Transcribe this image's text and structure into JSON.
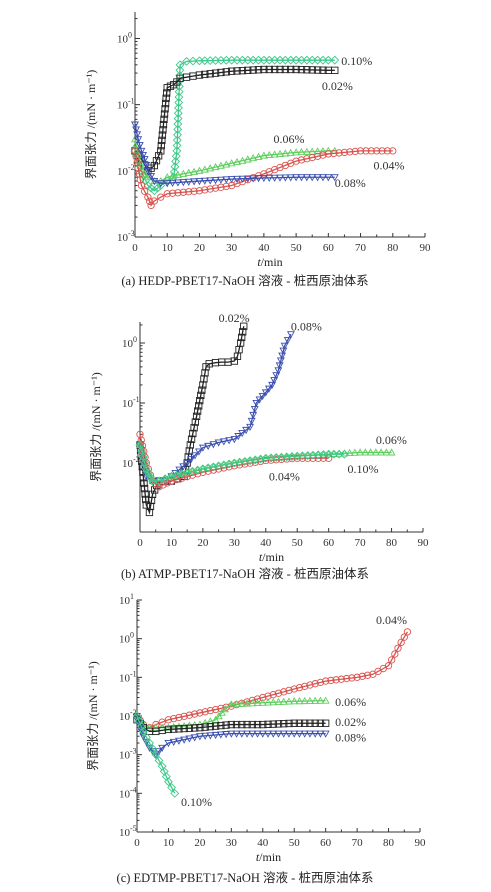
{
  "chart_data": [
    {
      "type": "line",
      "caption": "(a) HEDP-PBET17-NaOH 溶液 - 桩西原油体系",
      "xlabel_var": "t",
      "xlabel_unit": "/min",
      "ylabel": "界面张力 /(mN · m⁻¹)",
      "x_ticks": [
        "0",
        "10",
        "20",
        "30",
        "40",
        "50",
        "60",
        "70",
        "80",
        "90"
      ],
      "y_ticks": [
        {
          "base": "10",
          "exp": "0"
        },
        {
          "base": "10",
          "exp": "-1"
        },
        {
          "base": "10",
          "exp": "-2"
        },
        {
          "base": "10",
          "exp": "-3"
        }
      ],
      "xlim": [
        0,
        90
      ],
      "ylim_log10": [
        -3,
        0.4
      ],
      "series": [
        {
          "name": "0.10%",
          "color": "#3ec98a",
          "marker": "diamond",
          "x": [
            0,
            2,
            4,
            6,
            8,
            10,
            12,
            13,
            14,
            16,
            20,
            30,
            40,
            50,
            60,
            62
          ],
          "y": [
            0.02,
            0.01,
            0.006,
            0.005,
            0.006,
            0.007,
            0.008,
            0.02,
            0.4,
            0.45,
            0.46,
            0.47,
            0.47,
            0.47,
            0.47,
            0.47
          ]
        },
        {
          "name": "0.02%",
          "color": "#222222",
          "marker": "square",
          "x": [
            0,
            2,
            4,
            6,
            8,
            9,
            10,
            11,
            12,
            13,
            14,
            16,
            18,
            20,
            30,
            40,
            50,
            60,
            62
          ],
          "y": [
            0.02,
            0.015,
            0.01,
            0.012,
            0.02,
            0.06,
            0.18,
            0.19,
            0.2,
            0.22,
            0.25,
            0.26,
            0.27,
            0.28,
            0.32,
            0.34,
            0.34,
            0.33,
            0.33
          ]
        },
        {
          "name": "0.06%",
          "color": "#5ecf5e",
          "marker": "triangle-up",
          "x": [
            0,
            2,
            4,
            6,
            8,
            10,
            15,
            20,
            30,
            40,
            50,
            60,
            62
          ],
          "y": [
            0.03,
            0.01,
            0.008,
            0.007,
            0.007,
            0.008,
            0.009,
            0.01,
            0.013,
            0.017,
            0.019,
            0.02,
            0.02
          ]
        },
        {
          "name": "0.04%",
          "color": "#d9534f",
          "marker": "circle",
          "x": [
            0,
            2,
            4,
            5,
            6,
            8,
            10,
            20,
            30,
            40,
            50,
            60,
            70,
            80
          ],
          "y": [
            0.02,
            0.006,
            0.004,
            0.003,
            0.0035,
            0.004,
            0.0045,
            0.005,
            0.006,
            0.009,
            0.014,
            0.018,
            0.02,
            0.02
          ]
        },
        {
          "name": "0.08%",
          "color": "#3b4fb0",
          "marker": "triangle-down",
          "x": [
            0,
            1,
            2,
            3,
            4,
            6,
            8,
            10,
            20,
            30,
            40,
            50,
            60,
            62
          ],
          "y": [
            0.05,
            0.03,
            0.02,
            0.015,
            0.01,
            0.007,
            0.0065,
            0.0065,
            0.007,
            0.0075,
            0.0078,
            0.008,
            0.008,
            0.008
          ]
        }
      ],
      "labels": [
        {
          "text": "0.10%",
          "x": 64,
          "y": 0.46
        },
        {
          "text": "0.02%",
          "x": 58,
          "y": 0.19
        },
        {
          "text": "0.06%",
          "x": 43,
          "y": 0.03
        },
        {
          "text": "0.04%",
          "x": 74,
          "y": 0.012
        },
        {
          "text": "0.08%",
          "x": 62,
          "y": 0.0065
        }
      ]
    },
    {
      "type": "line",
      "caption": "(b) ATMP-PBET17-NaOH 溶液 - 桩西原油体系",
      "xlabel_var": "t",
      "xlabel_unit": "/min",
      "ylabel": "界面张力 /(mN · m⁻¹)",
      "x_ticks": [
        "0",
        "10",
        "20",
        "30",
        "40",
        "50",
        "60",
        "70",
        "80",
        "90"
      ],
      "y_ticks": [
        {
          "base": "10",
          "exp": "0"
        },
        {
          "base": "10",
          "exp": "-1"
        },
        {
          "base": "10",
          "exp": "-2"
        }
      ],
      "xlim": [
        0,
        90
      ],
      "ylim_log10": [
        -3.15,
        0.35
      ],
      "series": [
        {
          "name": "0.02%",
          "color": "#222222",
          "marker": "square",
          "x": [
            0,
            2,
            3,
            4,
            6,
            10,
            14,
            15,
            16,
            18,
            20,
            21,
            22,
            24,
            26,
            28,
            30,
            31,
            32,
            33
          ],
          "y": [
            0.02,
            0.002,
            0.0015,
            0.003,
            0.005,
            0.005,
            0.006,
            0.01,
            0.02,
            0.06,
            0.2,
            0.4,
            0.45,
            0.47,
            0.48,
            0.48,
            0.5,
            0.6,
            1.0,
            1.9
          ]
        },
        {
          "name": "0.08%",
          "color": "#3b4fb0",
          "marker": "triangle-down",
          "x": [
            0,
            2,
            4,
            6,
            8,
            10,
            15,
            20,
            25,
            30,
            35,
            37,
            40,
            42,
            44,
            46,
            48
          ],
          "y": [
            0.02,
            0.006,
            0.005,
            0.005,
            0.005,
            0.006,
            0.01,
            0.018,
            0.022,
            0.025,
            0.04,
            0.1,
            0.15,
            0.2,
            0.35,
            0.9,
            1.4
          ]
        },
        {
          "name": "0.06%",
          "color": "#5ecf5e",
          "marker": "triangle-up",
          "x": [
            0,
            2,
            4,
            6,
            10,
            20,
            30,
            40,
            50,
            60,
            70,
            80
          ],
          "y": [
            0.02,
            0.008,
            0.005,
            0.005,
            0.006,
            0.008,
            0.01,
            0.012,
            0.013,
            0.014,
            0.015,
            0.015
          ]
        },
        {
          "name": "0.04%",
          "color": "#d9534f",
          "marker": "circle",
          "x": [
            0,
            2,
            4,
            6,
            10,
            20,
            30,
            40,
            50,
            60
          ],
          "y": [
            0.03,
            0.01,
            0.005,
            0.004,
            0.005,
            0.007,
            0.009,
            0.011,
            0.012,
            0.012
          ]
        },
        {
          "name": "0.10%",
          "color": "#3ec98a",
          "marker": "diamond",
          "x": [
            0,
            2,
            4,
            6,
            10,
            20,
            30,
            40,
            50,
            60,
            65
          ],
          "y": [
            0.02,
            0.008,
            0.005,
            0.005,
            0.006,
            0.008,
            0.01,
            0.012,
            0.013,
            0.014,
            0.014
          ]
        }
      ],
      "labels": [
        {
          "text": "0.02%",
          "x": 25,
          "y": 2.6
        },
        {
          "text": "0.08%",
          "x": 48,
          "y": 1.9
        },
        {
          "text": "0.06%",
          "x": 75,
          "y": 0.024
        },
        {
          "text": "0.10%",
          "x": 66,
          "y": 0.008
        },
        {
          "text": "0.04%",
          "x": 41,
          "y": 0.006
        }
      ]
    },
    {
      "type": "line",
      "caption": "(c) EDTMP-PBET17-NaOH 溶液 - 桩西原油体系",
      "xlabel_var": "t",
      "xlabel_unit": "/min",
      "ylabel": "界面张力 /(mN · m⁻¹)",
      "x_ticks": [
        "0",
        "10",
        "20",
        "30",
        "40",
        "50",
        "60",
        "70",
        "80",
        "90"
      ],
      "y_ticks": [
        {
          "base": "10",
          "exp": "1"
        },
        {
          "base": "10",
          "exp": "0"
        },
        {
          "base": "10",
          "exp": "-1"
        },
        {
          "base": "10",
          "exp": "-2"
        },
        {
          "base": "10",
          "exp": "-3"
        },
        {
          "base": "10",
          "exp": "-4"
        },
        {
          "base": "10",
          "exp": "-5"
        }
      ],
      "xlim": [
        0,
        90
      ],
      "ylim_log10": [
        -5,
        1
      ],
      "series": [
        {
          "name": "0.04%",
          "color": "#d9534f",
          "marker": "circle",
          "x": [
            0,
            2,
            4,
            6,
            10,
            20,
            30,
            40,
            50,
            60,
            70,
            75,
            80,
            82,
            84,
            86
          ],
          "y": [
            0.01,
            0.006,
            0.005,
            0.006,
            0.008,
            0.012,
            0.018,
            0.03,
            0.05,
            0.08,
            0.1,
            0.12,
            0.2,
            0.4,
            0.8,
            1.5
          ]
        },
        {
          "name": "0.06%",
          "color": "#5ecf5e",
          "marker": "triangle-up",
          "x": [
            0,
            2,
            4,
            6,
            10,
            20,
            25,
            28,
            30,
            40,
            50,
            60
          ],
          "y": [
            0.01,
            0.006,
            0.005,
            0.005,
            0.005,
            0.006,
            0.008,
            0.015,
            0.02,
            0.022,
            0.024,
            0.025
          ]
        },
        {
          "name": "0.02%",
          "color": "#222222",
          "marker": "square",
          "x": [
            0,
            2,
            4,
            6,
            10,
            20,
            30,
            40,
            50,
            60
          ],
          "y": [
            0.008,
            0.005,
            0.004,
            0.004,
            0.0045,
            0.005,
            0.006,
            0.006,
            0.0065,
            0.0065
          ]
        },
        {
          "name": "0.08%",
          "color": "#3b4fb0",
          "marker": "triangle-down",
          "x": [
            0,
            1,
            2,
            4,
            6,
            8,
            10,
            20,
            30,
            40,
            50,
            60
          ],
          "y": [
            0.01,
            0.005,
            0.003,
            0.0015,
            0.001,
            0.0015,
            0.002,
            0.003,
            0.0035,
            0.0035,
            0.0035,
            0.0035
          ]
        },
        {
          "name": "0.10%",
          "color": "#3ec98a",
          "marker": "diamond",
          "x": [
            0,
            2,
            4,
            6,
            8,
            10,
            12
          ],
          "y": [
            0.01,
            0.004,
            0.002,
            0.001,
            0.0005,
            0.0002,
            0.0001
          ]
        }
      ],
      "labels": [
        {
          "text": "0.04%",
          "x": 76,
          "y": 3.0
        },
        {
          "text": "0.06%",
          "x": 63,
          "y": 0.023
        },
        {
          "text": "0.02%",
          "x": 63,
          "y": 0.007
        },
        {
          "text": "0.08%",
          "x": 63,
          "y": 0.0028
        },
        {
          "text": "0.10%",
          "x": 14,
          "y": 6e-05
        }
      ]
    }
  ]
}
